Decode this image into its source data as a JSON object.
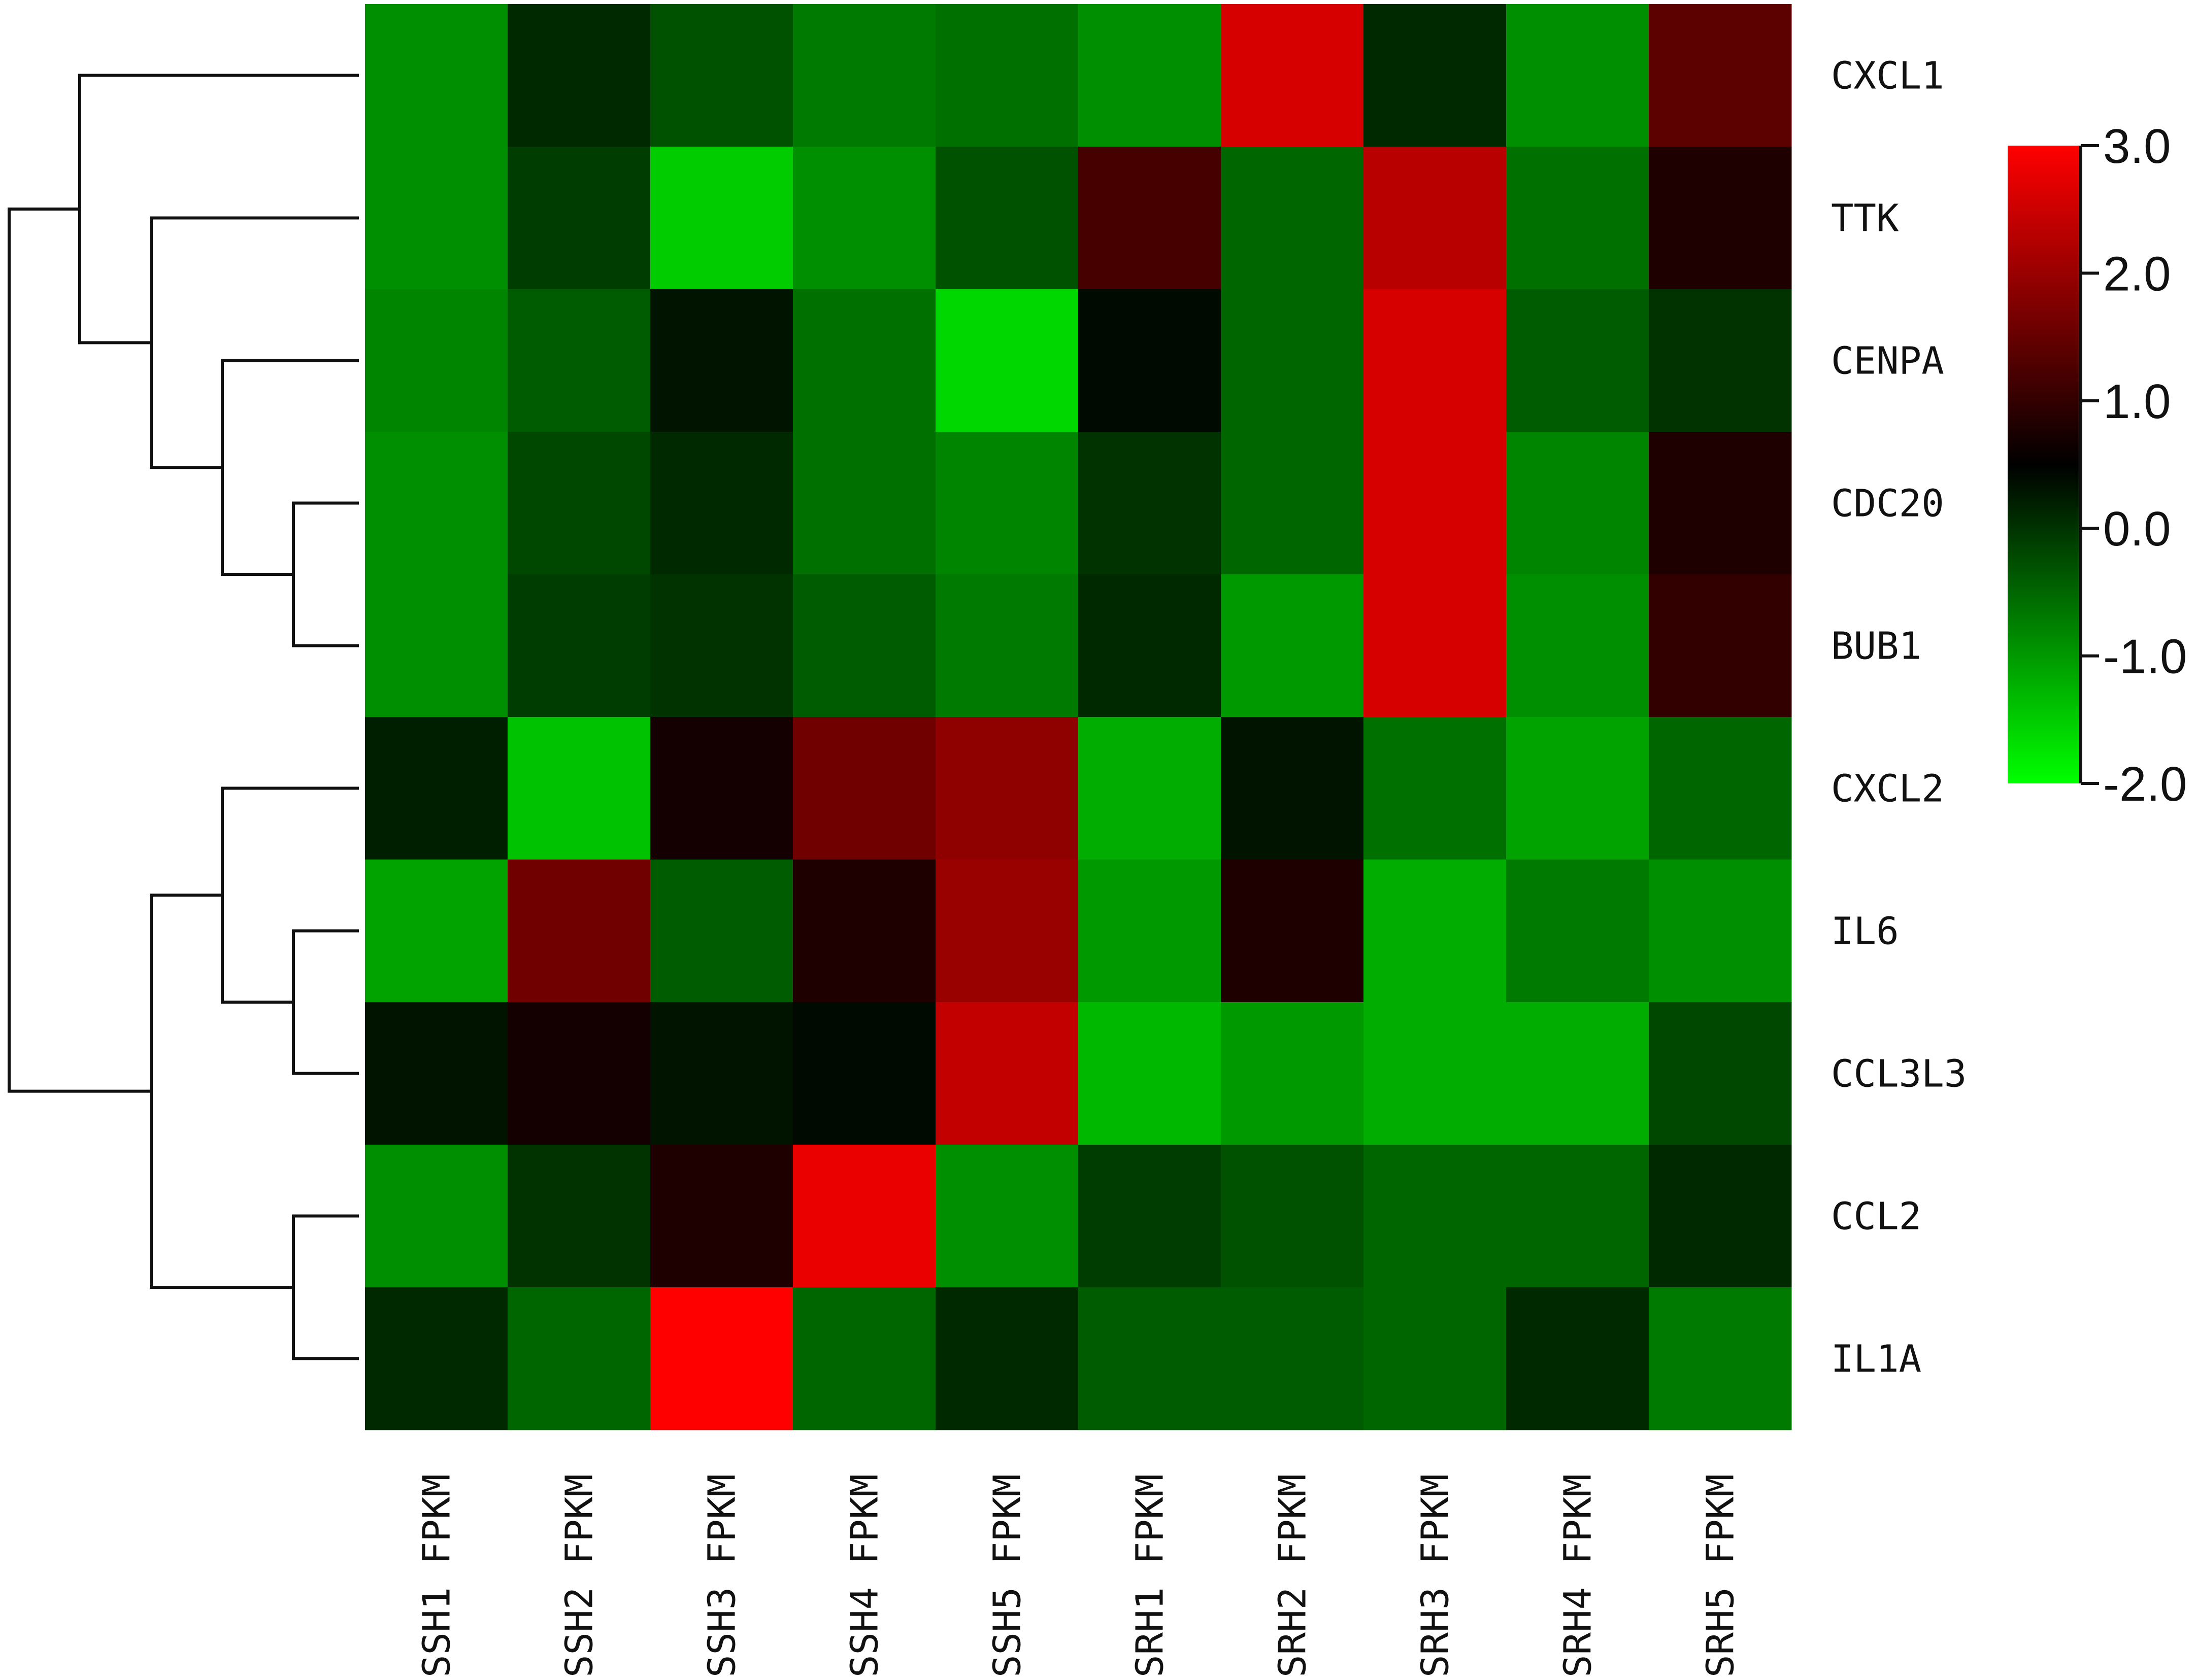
{
  "chart_data": {
    "type": "heatmap",
    "rows": [
      "CXCL1",
      "TTK",
      "CENPA",
      "CDC20",
      "BUB1",
      "CXCL2",
      "IL6",
      "CCL3L3",
      "CCL2",
      "IL1A"
    ],
    "columns": [
      "SSH1_FPKM",
      "SSH2_FPKM",
      "SSH3_FPKM",
      "SSH4_FPKM",
      "SSH5_FPKM",
      "SRH1_FPKM",
      "SRH2_FPKM",
      "SRH3_FPKM",
      "SRH4_FPKM",
      "SRH5_FPKM"
    ],
    "values": [
      [
        -0.9,
        0.1,
        -0.3,
        -0.7,
        -0.6,
        -0.9,
        2.6,
        0.1,
        -0.9,
        1.4
      ],
      [
        -0.9,
        -0.1,
        -1.5,
        -0.9,
        -0.3,
        1.2,
        -0.5,
        2.3,
        -0.6,
        0.8
      ],
      [
        -0.8,
        -0.4,
        0.3,
        -0.6,
        -1.6,
        0.4,
        -0.5,
        2.6,
        -0.4,
        0.0
      ],
      [
        -0.9,
        -0.2,
        0.1,
        -0.6,
        -0.8,
        0.0,
        -0.5,
        2.6,
        -0.8,
        0.8
      ],
      [
        -0.9,
        -0.1,
        0.0,
        -0.4,
        -0.7,
        0.1,
        -1.0,
        2.6,
        -0.9,
        1.0
      ],
      [
        0.2,
        -1.4,
        0.7,
        1.6,
        1.9,
        -1.2,
        0.3,
        -0.6,
        -1.1,
        -0.5
      ],
      [
        -1.1,
        1.6,
        -0.4,
        0.8,
        2.0,
        -1.0,
        0.8,
        -1.2,
        -0.7,
        -0.9
      ],
      [
        0.3,
        0.7,
        0.3,
        0.4,
        2.4,
        -1.3,
        -1.0,
        -1.2,
        -1.2,
        -0.2
      ],
      [
        -0.9,
        0.0,
        0.8,
        2.8,
        -0.9,
        -0.1,
        -0.3,
        -0.5,
        -0.5,
        0.1
      ],
      [
        0.1,
        -0.5,
        3.0,
        -0.5,
        0.1,
        -0.4,
        -0.4,
        -0.5,
        0.1,
        -0.7
      ]
    ],
    "colorscale": {
      "min": -2.0,
      "max": 3.0,
      "low_color": "#00ff00",
      "mid_color": "#000000",
      "high_color": "#ff0000",
      "ticks": [
        "3.0",
        "2.0",
        "1.0",
        "0.0",
        "-1.0",
        "-2.0"
      ]
    },
    "row_dendrogram": true
  }
}
